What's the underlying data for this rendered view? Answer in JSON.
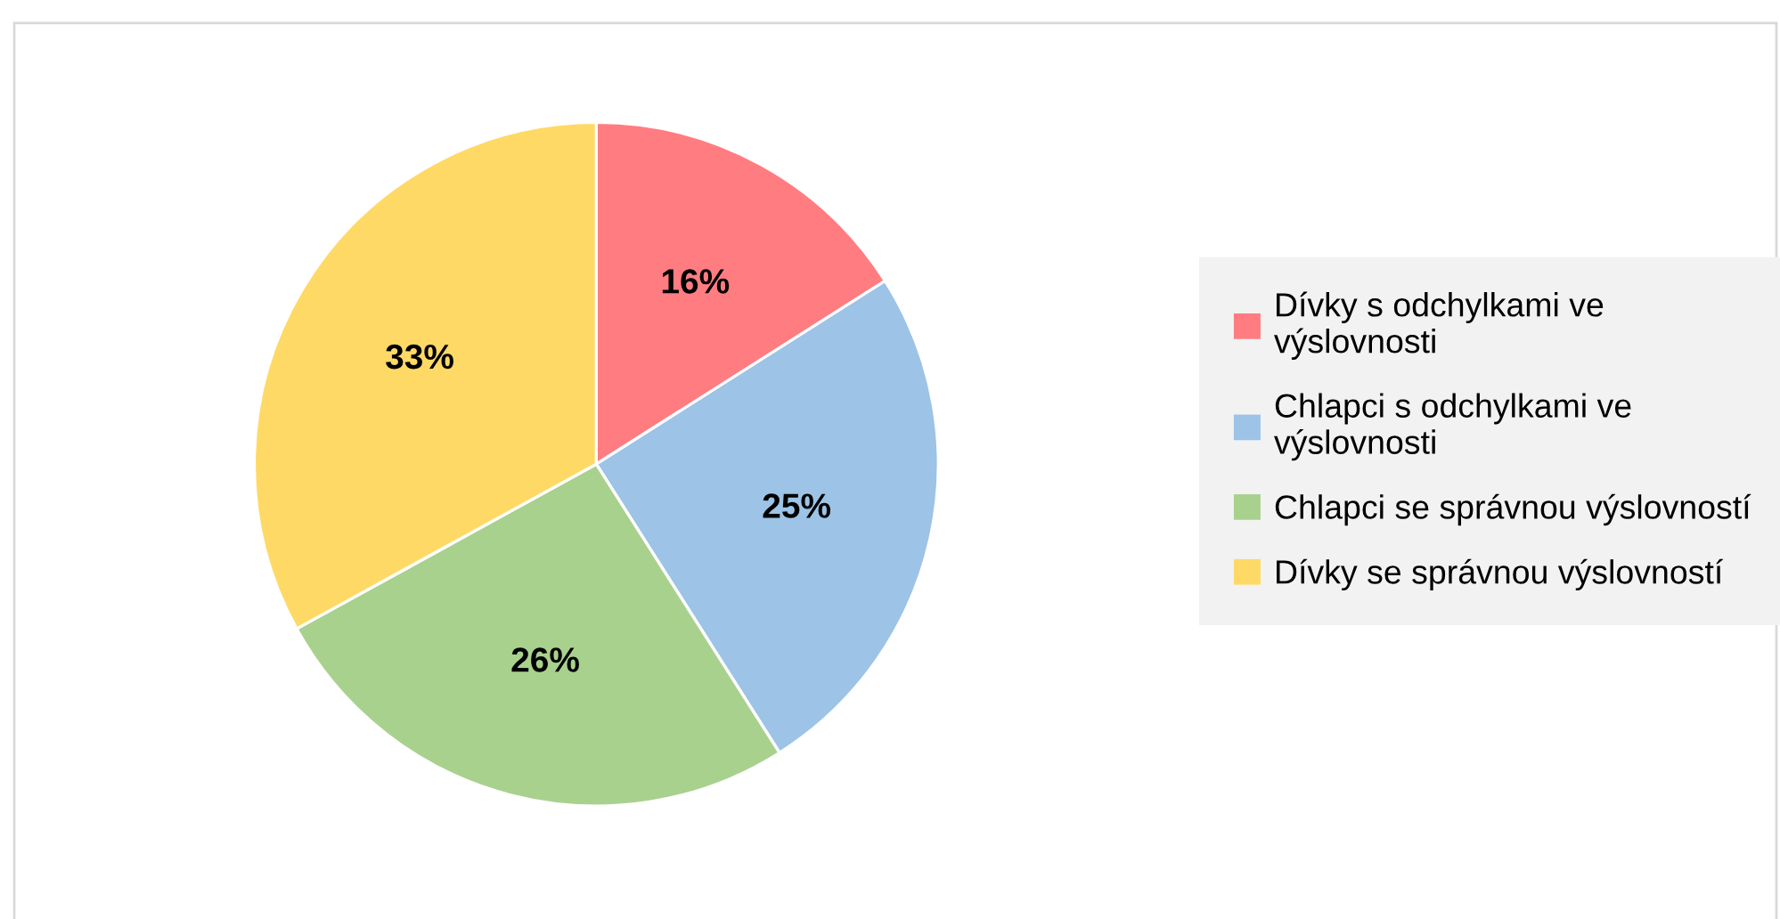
{
  "chart_data": {
    "type": "pie",
    "categories": [
      "Dívky s odchylkami ve výslovnosti",
      "Chlapci s odchylkami ve výslovnosti",
      "Chlapci se správnou výslovností",
      "Dívky se správnou výslovností"
    ],
    "values": [
      16,
      25,
      26,
      33
    ],
    "colors": [
      "#ff7c80",
      "#9dc3e6",
      "#a9d18e",
      "#ffd966"
    ],
    "value_labels": [
      "16%",
      "25%",
      "26%",
      "33%"
    ],
    "legend": "right"
  }
}
